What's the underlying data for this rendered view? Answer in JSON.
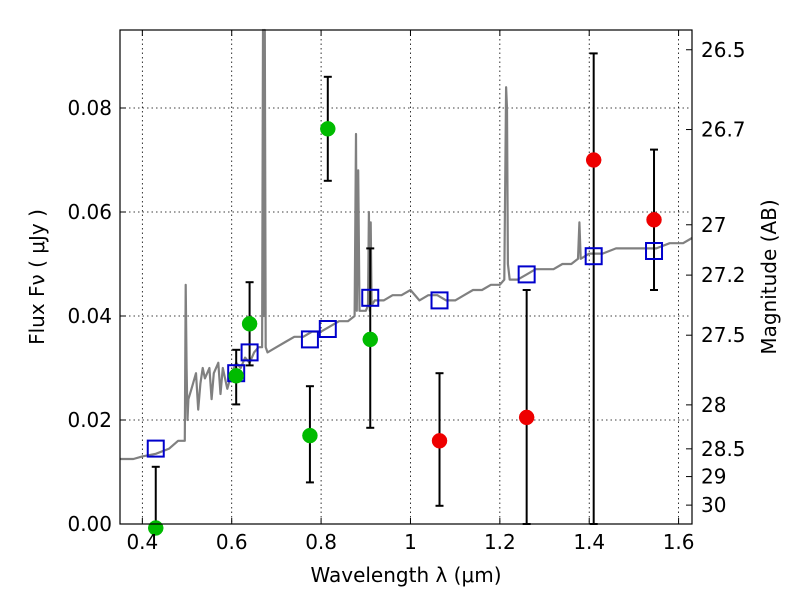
{
  "chart_data": {
    "type": "scatter",
    "xlabel": "Wavelength  λ (μm)",
    "ylabel": "Flux  Fν  ( μJy )",
    "y2label": "Magnitude (AB)",
    "xlim": [
      0.35,
      1.63
    ],
    "ylim": [
      0.0,
      0.095
    ],
    "grid": true,
    "x_ticks": [
      0.4,
      0.6,
      0.8,
      1.0,
      1.2,
      1.4,
      1.6
    ],
    "x_tick_labels": [
      "0.4",
      "0.6",
      "0.8",
      "1",
      "1.2",
      "1.4",
      "1.6"
    ],
    "y_ticks": [
      0.0,
      0.02,
      0.04,
      0.06,
      0.08
    ],
    "y_tick_labels": [
      "0.00",
      "0.02",
      "0.04",
      "0.06",
      "0.08"
    ],
    "y2_ticks": [
      {
        "label": "26.5",
        "mag": 26.5
      },
      {
        "label": "26.7",
        "mag": 26.7
      },
      {
        "label": "27",
        "mag": 27.0
      },
      {
        "label": "27.2",
        "mag": 27.2
      },
      {
        "label": "27.5",
        "mag": 27.5
      },
      {
        "label": "28",
        "mag": 28.0
      },
      {
        "label": "28.5",
        "mag": 28.5
      },
      {
        "label": "29",
        "mag": 29.0
      },
      {
        "label": "30",
        "mag": 30.0
      }
    ],
    "model_spectrum": {
      "color": "#808080",
      "x": [
        0.35,
        0.38,
        0.4,
        0.43,
        0.46,
        0.48,
        0.495,
        0.497,
        0.499,
        0.501,
        0.503,
        0.51,
        0.52,
        0.525,
        0.53,
        0.535,
        0.54,
        0.55,
        0.555,
        0.56,
        0.57,
        0.575,
        0.58,
        0.59,
        0.6,
        0.61,
        0.62,
        0.63,
        0.64,
        0.65,
        0.66,
        0.668,
        0.67,
        0.672,
        0.674,
        0.676,
        0.68,
        0.7,
        0.72,
        0.74,
        0.76,
        0.78,
        0.8,
        0.82,
        0.84,
        0.86,
        0.875,
        0.878,
        0.88,
        0.883,
        0.886,
        0.9,
        0.905,
        0.907,
        0.909,
        0.911,
        0.913,
        0.92,
        0.94,
        0.96,
        0.98,
        1.0,
        1.02,
        1.04,
        1.06,
        1.08,
        1.1,
        1.12,
        1.14,
        1.16,
        1.18,
        1.2,
        1.21,
        1.214,
        1.216,
        1.218,
        1.222,
        1.24,
        1.26,
        1.28,
        1.3,
        1.32,
        1.34,
        1.36,
        1.375,
        1.378,
        1.381,
        1.4,
        1.43,
        1.46,
        1.49,
        1.52,
        1.55,
        1.58,
        1.61,
        1.63
      ],
      "y": [
        0.0125,
        0.0125,
        0.013,
        0.0135,
        0.0145,
        0.016,
        0.016,
        0.046,
        0.03,
        0.02,
        0.024,
        0.026,
        0.029,
        0.022,
        0.027,
        0.03,
        0.028,
        0.03,
        0.024,
        0.029,
        0.031,
        0.025,
        0.03,
        0.026,
        0.029,
        0.031,
        0.03,
        0.032,
        0.031,
        0.033,
        0.034,
        0.034,
        0.095,
        0.04,
        0.095,
        0.034,
        0.033,
        0.034,
        0.035,
        0.036,
        0.036,
        0.037,
        0.037,
        0.038,
        0.039,
        0.039,
        0.04,
        0.075,
        0.041,
        0.068,
        0.041,
        0.041,
        0.042,
        0.06,
        0.041,
        0.058,
        0.042,
        0.043,
        0.043,
        0.044,
        0.044,
        0.045,
        0.043,
        0.044,
        0.044,
        0.043,
        0.043,
        0.044,
        0.045,
        0.045,
        0.046,
        0.046,
        0.047,
        0.084,
        0.08,
        0.05,
        0.047,
        0.047,
        0.048,
        0.049,
        0.049,
        0.049,
        0.05,
        0.05,
        0.051,
        0.058,
        0.051,
        0.052,
        0.052,
        0.053,
        0.053,
        0.053,
        0.053,
        0.054,
        0.054,
        0.055
      ]
    },
    "series": [
      {
        "name": "",
        "marker": "open-square",
        "color": "#0000cc",
        "x": [
          0.43,
          0.61,
          0.64,
          0.775,
          0.815,
          0.91,
          1.065,
          1.26,
          1.41,
          1.545
        ],
        "y": [
          0.0145,
          0.029,
          0.033,
          0.0355,
          0.0375,
          0.0435,
          0.043,
          0.048,
          0.0515,
          0.0525
        ]
      },
      {
        "name": "",
        "marker": "filled-circle",
        "color": "#00bb00",
        "x": [
          0.43,
          0.61,
          0.64,
          0.775,
          0.815,
          0.91
        ],
        "y": [
          -0.001,
          0.0285,
          0.0385,
          0.017,
          0.076,
          0.0355
        ],
        "yerr_low": [
          0.0,
          0.023,
          0.0305,
          0.008,
          0.066,
          0.0185
        ],
        "yerr_high": [
          0.011,
          0.0335,
          0.0465,
          0.0265,
          0.086,
          0.053
        ]
      },
      {
        "name": "",
        "marker": "filled-circle",
        "color": "#ee0000",
        "x": [
          1.065,
          1.26,
          1.41,
          1.545
        ],
        "y": [
          0.016,
          0.0205,
          0.07,
          0.0585
        ],
        "yerr_low": [
          0.0035,
          0.0,
          0.0,
          0.045
        ],
        "yerr_high": [
          0.029,
          0.045,
          0.0905,
          0.072
        ]
      }
    ]
  }
}
